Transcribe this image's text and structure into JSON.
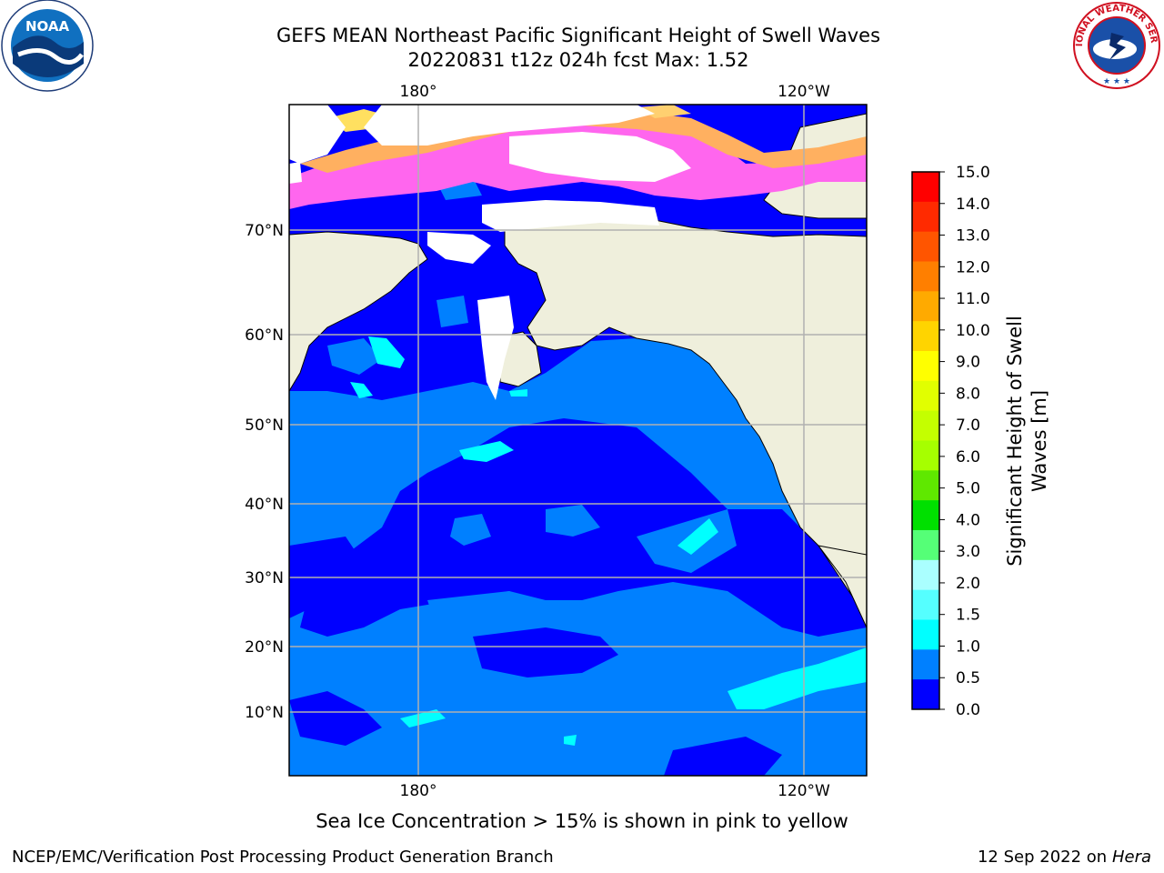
{
  "header": {
    "title_line1": "GEFS MEAN Northeast Pacific Significant Height of Swell Waves",
    "title_line2": "20220831 t12z 024h fcst   Max: 1.52"
  },
  "logos": {
    "noaa_text": "NOAA",
    "nws_text": "NATIONAL WEATHER SERVICE"
  },
  "map": {
    "lon_labels_top": [
      "180°",
      "120°W"
    ],
    "lon_labels_bottom": [
      "180°",
      "120°W"
    ],
    "lat_labels": [
      "70°N",
      "60°N",
      "50°N",
      "40°N",
      "30°N",
      "20°N",
      "10°N"
    ]
  },
  "colorbar": {
    "label_line1": "Significant Height of Swell",
    "label_line2": "Waves [m]",
    "ticks": [
      "15.0",
      "14.0",
      "13.0",
      "12.0",
      "11.0",
      "10.0",
      "9.0",
      "8.0",
      "7.0",
      "6.0",
      "5.0",
      "4.0",
      "3.0",
      "2.0",
      "1.5",
      "1.0",
      "0.5",
      "0.0"
    ],
    "colors": [
      "#ff0000",
      "#ff2a00",
      "#ff5500",
      "#ff7f00",
      "#ffaa00",
      "#ffd400",
      "#ffff00",
      "#e1ff00",
      "#c4ff00",
      "#a6ff00",
      "#5fe800",
      "#00e000",
      "#55ff77",
      "#aaffff",
      "#55ffff",
      "#00ffff",
      "#0080ff",
      "#0000ff"
    ]
  },
  "caption": "Sea Ice Concentration > 15% is shown in pink to yellow",
  "footer": {
    "left": "NCEP/EMC/Verification Post Processing Product Generation Branch",
    "right_prefix": "12 Sep 2022 on",
    "right_host": "Hera"
  }
}
